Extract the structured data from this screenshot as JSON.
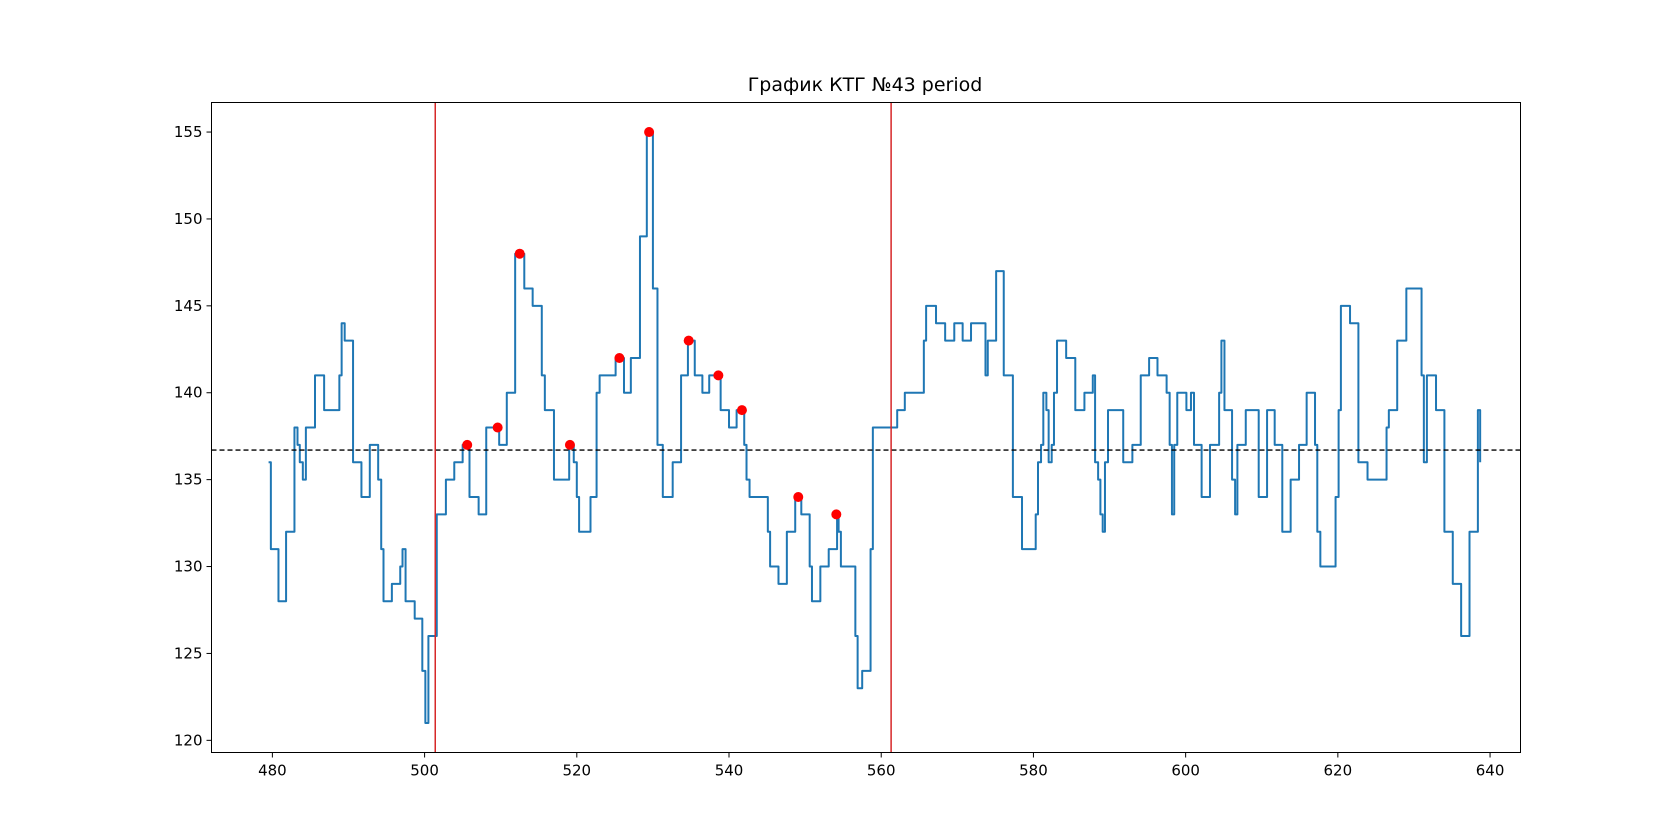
{
  "chart_data": {
    "type": "line",
    "title": "График КТГ №43 period",
    "xlabel": "",
    "ylabel": "",
    "xlim": [
      472,
      644
    ],
    "ylim": [
      119.3,
      156.7
    ],
    "x_ticks": [
      480,
      500,
      520,
      540,
      560,
      580,
      600,
      620,
      640
    ],
    "y_ticks": [
      120,
      125,
      130,
      135,
      140,
      145,
      150,
      155
    ],
    "grid": false,
    "legend": "none",
    "colors": {
      "series": "#1f77b4",
      "markers": "#ff0000",
      "vlines": "#d62728",
      "baseline": "#000000"
    },
    "baseline": {
      "y": 136.7,
      "style": "dashed"
    },
    "vlines": [
      501.4,
      561.3
    ],
    "series": [
      {
        "style": "step",
        "points": [
          [
            479.5,
            136
          ],
          [
            479.8,
            131
          ],
          [
            480.5,
            131
          ],
          [
            480.8,
            128
          ],
          [
            481.5,
            128
          ],
          [
            481.8,
            132
          ],
          [
            482.6,
            132
          ],
          [
            482.9,
            138
          ],
          [
            483.3,
            137
          ],
          [
            483.6,
            136
          ],
          [
            484,
            135
          ],
          [
            484.4,
            138
          ],
          [
            485.3,
            138
          ],
          [
            485.6,
            141
          ],
          [
            486.5,
            141
          ],
          [
            486.8,
            139
          ],
          [
            488.5,
            139
          ],
          [
            488.8,
            141
          ],
          [
            489.1,
            144
          ],
          [
            489.5,
            143
          ],
          [
            490.3,
            143
          ],
          [
            490.6,
            136
          ],
          [
            491.4,
            136
          ],
          [
            491.7,
            134
          ],
          [
            492.5,
            134
          ],
          [
            492.8,
            137
          ],
          [
            493.6,
            137
          ],
          [
            493.9,
            135
          ],
          [
            494.3,
            131
          ],
          [
            494.6,
            128
          ],
          [
            495.4,
            128
          ],
          [
            495.7,
            129
          ],
          [
            496.5,
            129
          ],
          [
            496.8,
            130
          ],
          [
            497.1,
            131
          ],
          [
            497.5,
            128
          ],
          [
            498.4,
            128
          ],
          [
            498.7,
            127
          ],
          [
            499.4,
            127
          ],
          [
            499.7,
            124
          ],
          [
            500.1,
            121
          ],
          [
            500.5,
            126
          ],
          [
            501.3,
            126
          ],
          [
            501.6,
            133
          ],
          [
            502.5,
            133
          ],
          [
            502.8,
            135
          ],
          [
            503.6,
            135
          ],
          [
            503.9,
            136
          ],
          [
            504.7,
            136
          ],
          [
            505,
            137
          ],
          [
            505.6,
            137
          ],
          [
            505.9,
            134
          ],
          [
            506.8,
            134
          ],
          [
            507.1,
            133
          ],
          [
            507.8,
            133
          ],
          [
            508.1,
            138
          ],
          [
            509.1,
            138
          ],
          [
            509.5,
            138
          ],
          [
            509.8,
            137
          ],
          [
            510.5,
            137
          ],
          [
            510.8,
            140
          ],
          [
            511.6,
            140
          ],
          [
            511.9,
            148
          ],
          [
            512.8,
            148
          ],
          [
            513.1,
            146
          ],
          [
            513.9,
            146
          ],
          [
            514.2,
            145
          ],
          [
            515.1,
            145
          ],
          [
            515.4,
            141
          ],
          [
            515.8,
            139
          ],
          [
            516.7,
            139
          ],
          [
            517,
            135
          ],
          [
            518.7,
            135
          ],
          [
            519,
            137
          ],
          [
            519.3,
            137
          ],
          [
            519.6,
            136
          ],
          [
            520,
            134
          ],
          [
            520.3,
            132
          ],
          [
            521.5,
            132
          ],
          [
            521.8,
            134
          ],
          [
            522.3,
            134
          ],
          [
            522.6,
            140
          ],
          [
            523,
            141
          ],
          [
            524.8,
            141
          ],
          [
            525.1,
            142
          ],
          [
            525.9,
            142
          ],
          [
            526.2,
            140
          ],
          [
            526.8,
            140
          ],
          [
            527.1,
            142
          ],
          [
            528,
            142
          ],
          [
            528.3,
            149
          ],
          [
            528.9,
            149
          ],
          [
            529.2,
            155
          ],
          [
            529.8,
            155
          ],
          [
            530,
            146
          ],
          [
            530.3,
            146
          ],
          [
            530.6,
            137
          ],
          [
            531,
            137
          ],
          [
            531.3,
            134
          ],
          [
            532.3,
            134
          ],
          [
            532.6,
            136
          ],
          [
            533.4,
            136
          ],
          [
            533.7,
            141
          ],
          [
            534.3,
            141
          ],
          [
            534.6,
            143
          ],
          [
            535.2,
            143
          ],
          [
            535.5,
            141
          ],
          [
            536.2,
            141
          ],
          [
            536.5,
            140
          ],
          [
            537.1,
            140
          ],
          [
            537.4,
            141
          ],
          [
            538.6,
            141
          ],
          [
            538.9,
            139
          ],
          [
            539.7,
            139
          ],
          [
            540,
            138
          ],
          [
            540.7,
            138
          ],
          [
            541,
            139
          ],
          [
            541.7,
            139
          ],
          [
            542,
            137
          ],
          [
            542.3,
            135
          ],
          [
            542.7,
            134
          ],
          [
            544.8,
            134
          ],
          [
            545.1,
            132
          ],
          [
            545.4,
            130
          ],
          [
            546.2,
            130
          ],
          [
            546.5,
            129
          ],
          [
            547.3,
            129
          ],
          [
            547.6,
            132
          ],
          [
            548.4,
            132
          ],
          [
            548.7,
            134
          ],
          [
            549.2,
            134
          ],
          [
            549.5,
            133
          ],
          [
            550.3,
            133
          ],
          [
            550.6,
            130
          ],
          [
            550.9,
            128
          ],
          [
            551.7,
            128
          ],
          [
            552,
            130
          ],
          [
            552.8,
            130
          ],
          [
            553.1,
            131
          ],
          [
            553.9,
            131
          ],
          [
            554.2,
            133
          ],
          [
            554.4,
            132
          ],
          [
            554.7,
            130
          ],
          [
            556.3,
            130
          ],
          [
            556.6,
            126
          ],
          [
            556.9,
            123
          ],
          [
            557.2,
            123
          ],
          [
            557.5,
            124
          ],
          [
            558.3,
            124
          ],
          [
            558.6,
            131
          ],
          [
            558.9,
            138
          ],
          [
            560.7,
            138
          ],
          [
            561,
            138
          ],
          [
            561.8,
            138
          ],
          [
            562.1,
            139
          ],
          [
            562.8,
            139
          ],
          [
            563.1,
            140
          ],
          [
            565.3,
            140
          ],
          [
            565.6,
            143
          ],
          [
            565.9,
            145
          ],
          [
            566.9,
            145
          ],
          [
            567.2,
            144
          ],
          [
            568.1,
            144
          ],
          [
            568.4,
            143
          ],
          [
            569.3,
            143
          ],
          [
            569.6,
            144
          ],
          [
            570.4,
            144
          ],
          [
            570.7,
            143
          ],
          [
            571.5,
            143
          ],
          [
            571.8,
            144
          ],
          [
            573.4,
            144
          ],
          [
            573.7,
            141
          ],
          [
            574,
            143
          ],
          [
            574.8,
            143
          ],
          [
            575.1,
            147
          ],
          [
            575.8,
            147
          ],
          [
            576.1,
            141
          ],
          [
            577,
            141
          ],
          [
            577.3,
            134
          ],
          [
            578.2,
            134
          ],
          [
            578.5,
            131
          ],
          [
            580,
            131
          ],
          [
            580.3,
            133
          ],
          [
            580.6,
            136
          ],
          [
            581,
            137
          ],
          [
            581.3,
            140
          ],
          [
            581.7,
            139
          ],
          [
            582,
            136
          ],
          [
            582.4,
            137
          ],
          [
            582.7,
            140
          ],
          [
            583.1,
            143
          ],
          [
            584,
            143
          ],
          [
            584.3,
            142
          ],
          [
            585.2,
            142
          ],
          [
            585.5,
            139
          ],
          [
            586.4,
            139
          ],
          [
            586.7,
            140
          ],
          [
            587.5,
            140
          ],
          [
            587.8,
            141
          ],
          [
            588.1,
            136
          ],
          [
            588.5,
            135
          ],
          [
            588.8,
            133
          ],
          [
            589.1,
            132
          ],
          [
            589.4,
            136
          ],
          [
            589.8,
            139
          ],
          [
            591.5,
            139
          ],
          [
            591.8,
            136
          ],
          [
            592.7,
            136
          ],
          [
            593,
            137
          ],
          [
            593.8,
            137
          ],
          [
            594.1,
            141
          ],
          [
            594.9,
            141
          ],
          [
            595.2,
            142
          ],
          [
            596,
            142
          ],
          [
            596.3,
            141
          ],
          [
            597.2,
            141
          ],
          [
            597.5,
            140
          ],
          [
            597.9,
            137
          ],
          [
            598.2,
            133
          ],
          [
            598.5,
            137
          ],
          [
            598.9,
            140
          ],
          [
            599.8,
            140
          ],
          [
            600.1,
            139
          ],
          [
            600.7,
            140
          ],
          [
            601.1,
            137
          ],
          [
            601.8,
            137
          ],
          [
            602.1,
            134
          ],
          [
            602.9,
            134
          ],
          [
            603.2,
            137
          ],
          [
            604.1,
            137
          ],
          [
            604.4,
            140
          ],
          [
            604.7,
            143
          ],
          [
            605.1,
            139
          ],
          [
            605.8,
            139
          ],
          [
            606.1,
            135
          ],
          [
            606.5,
            133
          ],
          [
            606.8,
            137
          ],
          [
            607.6,
            137
          ],
          [
            607.9,
            139
          ],
          [
            609.3,
            139
          ],
          [
            609.6,
            134
          ],
          [
            610.4,
            134
          ],
          [
            610.7,
            139
          ],
          [
            611.4,
            139
          ],
          [
            611.7,
            137
          ],
          [
            612.4,
            137
          ],
          [
            612.7,
            132
          ],
          [
            613.5,
            132
          ],
          [
            613.8,
            135
          ],
          [
            614.6,
            135
          ],
          [
            614.9,
            137
          ],
          [
            615.6,
            137
          ],
          [
            615.9,
            140
          ],
          [
            616.7,
            140
          ],
          [
            617,
            137
          ],
          [
            617.3,
            132
          ],
          [
            617.7,
            130
          ],
          [
            619.4,
            130
          ],
          [
            619.7,
            134
          ],
          [
            620.1,
            139
          ],
          [
            620.4,
            145
          ],
          [
            621.3,
            145
          ],
          [
            621.6,
            144
          ],
          [
            622.4,
            144
          ],
          [
            622.7,
            136
          ],
          [
            623.6,
            136
          ],
          [
            623.9,
            135
          ],
          [
            626.1,
            135
          ],
          [
            626.4,
            138
          ],
          [
            626.7,
            139
          ],
          [
            627.5,
            139
          ],
          [
            627.8,
            143
          ],
          [
            628.7,
            143
          ],
          [
            629,
            146
          ],
          [
            630.7,
            146
          ],
          [
            631,
            141
          ],
          [
            631.3,
            136
          ],
          [
            631.7,
            141
          ],
          [
            632.6,
            141
          ],
          [
            632.9,
            139
          ],
          [
            633.7,
            139
          ],
          [
            634,
            132
          ],
          [
            634.8,
            132
          ],
          [
            635.1,
            129
          ],
          [
            635.9,
            129
          ],
          [
            636.2,
            126
          ],
          [
            637,
            126
          ],
          [
            637.3,
            132
          ],
          [
            638.1,
            132
          ],
          [
            638.4,
            139
          ],
          [
            638.7,
            136
          ]
        ]
      }
    ],
    "peaks": [
      [
        505.6,
        137
      ],
      [
        509.6,
        138
      ],
      [
        512.5,
        148
      ],
      [
        519.1,
        137
      ],
      [
        525.6,
        142
      ],
      [
        529.5,
        155
      ],
      [
        534.7,
        143
      ],
      [
        538.6,
        141
      ],
      [
        541.7,
        139
      ],
      [
        549.1,
        134
      ],
      [
        554.1,
        133
      ]
    ]
  }
}
